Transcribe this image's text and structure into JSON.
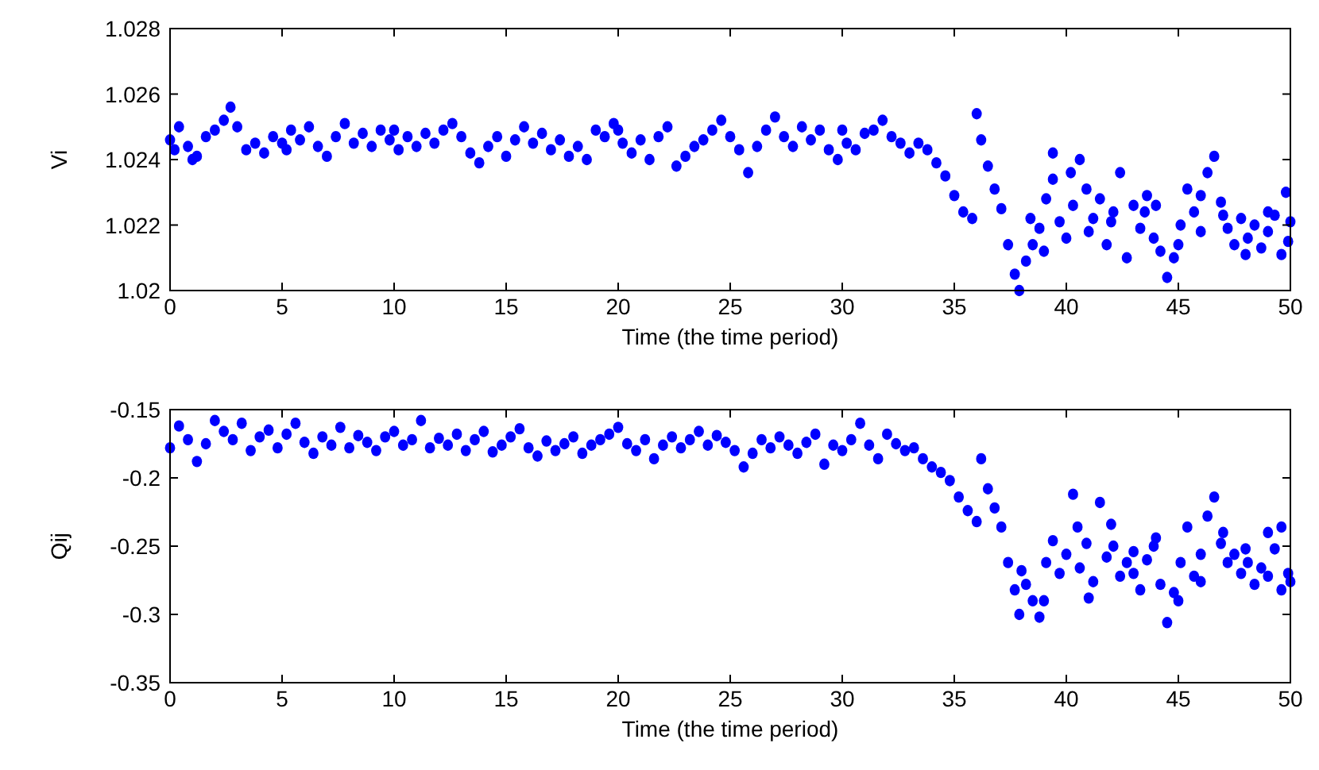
{
  "chart_data": [
    {
      "type": "scatter",
      "xlabel": "Time (the time period)",
      "ylabel": "Vi",
      "color": "#0000ff",
      "marker": "circle",
      "grid": false,
      "xlim": [
        0,
        50
      ],
      "xticks": [
        0,
        5,
        10,
        15,
        20,
        25,
        30,
        35,
        40,
        45,
        50
      ],
      "ylim": [
        1.02,
        1.028
      ],
      "yticks": [
        1.02,
        1.022,
        1.024,
        1.026,
        1.028
      ],
      "x": [
        0,
        0.4,
        0.8,
        1.2,
        1.6,
        2.0,
        2.4,
        2.7,
        3.0,
        3.4,
        3.8,
        4.2,
        4.6,
        5.0,
        5.4,
        5.8,
        6.2,
        6.6,
        7.0,
        7.4,
        7.8,
        8.2,
        8.6,
        9.0,
        9.4,
        9.8,
        10.2,
        10.6,
        11.0,
        11.4,
        11.8,
        12.2,
        12.6,
        13.0,
        13.4,
        13.8,
        14.2,
        14.6,
        15.0,
        15.4,
        15.8,
        16.2,
        16.6,
        17.0,
        17.4,
        17.8,
        18.2,
        18.6,
        19.0,
        19.4,
        19.8,
        20.2,
        20.6,
        21.0,
        21.4,
        21.8,
        22.2,
        22.6,
        23.0,
        23.4,
        23.8,
        24.2,
        24.6,
        25.0,
        25.4,
        25.8,
        26.2,
        26.6,
        27.0,
        27.4,
        27.8,
        28.2,
        28.6,
        29.0,
        29.4,
        29.8,
        30.2,
        30.6,
        31.0,
        31.4,
        31.8,
        32.2,
        32.6,
        33.0,
        33.4,
        33.8,
        34.2,
        34.6,
        35.0,
        35.4,
        35.8,
        36.0,
        36.2,
        36.5,
        36.8,
        37.1,
        37.4,
        37.7,
        37.9,
        38.2,
        38.5,
        38.8,
        39.1,
        39.4,
        39.4,
        39.7,
        40.0,
        40.3,
        40.6,
        40.9,
        41.2,
        41.5,
        41.8,
        42.1,
        42.4,
        42.7,
        43.0,
        43.3,
        43.6,
        43.9,
        44.2,
        44.5,
        44.8,
        45.1,
        45.4,
        45.7,
        46.0,
        46.3,
        46.6,
        46.9,
        47.2,
        47.5,
        47.8,
        48.1,
        48.4,
        48.7,
        49.0,
        49.3,
        49.6,
        49.9,
        50,
        38.4,
        39.0,
        40.2,
        41.0,
        42.0,
        43.5,
        44.0,
        45.0,
        46.0,
        47.0,
        48.0,
        49.0,
        49.8,
        0.2,
        1.0,
        5.2,
        10.0,
        20.0,
        30.0
      ],
      "values": [
        1.0246,
        1.025,
        1.0244,
        1.0241,
        1.0247,
        1.0249,
        1.0252,
        1.0256,
        1.025,
        1.0243,
        1.0245,
        1.0242,
        1.0247,
        1.0245,
        1.0249,
        1.0246,
        1.025,
        1.0244,
        1.0241,
        1.0247,
        1.0251,
        1.0245,
        1.0248,
        1.0244,
        1.0249,
        1.0246,
        1.0243,
        1.0247,
        1.0244,
        1.0248,
        1.0245,
        1.0249,
        1.0251,
        1.0247,
        1.0242,
        1.0239,
        1.0244,
        1.0247,
        1.0241,
        1.0246,
        1.025,
        1.0245,
        1.0248,
        1.0243,
        1.0246,
        1.0241,
        1.0244,
        1.024,
        1.0249,
        1.0247,
        1.0251,
        1.0245,
        1.0242,
        1.0246,
        1.024,
        1.0247,
        1.025,
        1.0238,
        1.0241,
        1.0244,
        1.0246,
        1.0249,
        1.0252,
        1.0247,
        1.0243,
        1.0236,
        1.0244,
        1.0249,
        1.0253,
        1.0247,
        1.0244,
        1.025,
        1.0246,
        1.0249,
        1.0243,
        1.024,
        1.0245,
        1.0243,
        1.0248,
        1.0249,
        1.0252,
        1.0247,
        1.0245,
        1.0242,
        1.0245,
        1.0243,
        1.0239,
        1.0235,
        1.0229,
        1.0224,
        1.0222,
        1.0254,
        1.0246,
        1.0238,
        1.0231,
        1.0225,
        1.0214,
        1.0205,
        1.02,
        1.0209,
        1.0214,
        1.0219,
        1.0228,
        1.0234,
        1.0242,
        1.0221,
        1.0216,
        1.0226,
        1.024,
        1.0231,
        1.0222,
        1.0228,
        1.0214,
        1.0224,
        1.0236,
        1.021,
        1.0226,
        1.0219,
        1.0229,
        1.0216,
        1.0212,
        1.0204,
        1.021,
        1.022,
        1.0231,
        1.0224,
        1.0229,
        1.0236,
        1.0241,
        1.0227,
        1.0219,
        1.0214,
        1.0222,
        1.0216,
        1.022,
        1.0213,
        1.0218,
        1.0223,
        1.0211,
        1.0215,
        1.0221,
        1.0222,
        1.0212,
        1.0236,
        1.0218,
        1.0221,
        1.0224,
        1.0226,
        1.0214,
        1.0218,
        1.0223,
        1.0211,
        1.0224,
        1.023,
        1.0243,
        1.024,
        1.0243,
        1.0249,
        1.0249,
        1.0249
      ]
    },
    {
      "type": "scatter",
      "xlabel": "Time (the time period)",
      "ylabel": "Qij",
      "color": "#0000ff",
      "marker": "circle",
      "grid": false,
      "xlim": [
        0,
        50
      ],
      "xticks": [
        0,
        5,
        10,
        15,
        20,
        25,
        30,
        35,
        40,
        45,
        50
      ],
      "ylim": [
        -0.35,
        -0.15
      ],
      "yticks": [
        -0.35,
        -0.3,
        -0.25,
        -0.2,
        -0.15
      ],
      "x": [
        0,
        0.4,
        0.8,
        1.2,
        1.6,
        2.0,
        2.4,
        2.8,
        3.2,
        3.6,
        4.0,
        4.4,
        4.8,
        5.2,
        5.6,
        6.0,
        6.4,
        6.8,
        7.2,
        7.6,
        8.0,
        8.4,
        8.8,
        9.2,
        9.6,
        10.0,
        10.4,
        10.8,
        11.2,
        11.6,
        12.0,
        12.4,
        12.8,
        13.2,
        13.6,
        14.0,
        14.4,
        14.8,
        15.2,
        15.6,
        16.0,
        16.4,
        16.8,
        17.2,
        17.6,
        18.0,
        18.4,
        18.8,
        19.2,
        19.6,
        20.0,
        20.4,
        20.8,
        21.2,
        21.6,
        22.0,
        22.4,
        22.8,
        23.2,
        23.6,
        24.0,
        24.4,
        24.8,
        25.2,
        25.6,
        26.0,
        26.4,
        26.8,
        27.2,
        27.6,
        28.0,
        28.4,
        28.8,
        29.2,
        29.6,
        30.0,
        30.4,
        30.8,
        31.2,
        31.6,
        32.0,
        32.4,
        32.8,
        33.2,
        33.6,
        34.0,
        34.4,
        34.8,
        35.2,
        35.6,
        36.0,
        36.2,
        36.5,
        36.8,
        37.1,
        37.4,
        37.7,
        37.9,
        38.2,
        38.5,
        38.8,
        39.1,
        39.4,
        39.7,
        40.0,
        40.3,
        40.6,
        40.9,
        41.2,
        41.5,
        41.8,
        42.1,
        42.4,
        42.7,
        43.0,
        43.3,
        43.6,
        43.9,
        44.2,
        44.5,
        44.8,
        45.1,
        45.4,
        45.7,
        46.0,
        46.3,
        46.6,
        46.9,
        47.2,
        47.5,
        47.8,
        48.1,
        48.4,
        48.7,
        49.0,
        49.3,
        49.6,
        49.9,
        50,
        38.0,
        39.0,
        40.5,
        41.0,
        42.0,
        43.0,
        44.0,
        45.0,
        46.0,
        47.0,
        48.0,
        49.0,
        49.6
      ],
      "values": [
        -0.178,
        -0.162,
        -0.172,
        -0.188,
        -0.175,
        -0.158,
        -0.166,
        -0.172,
        -0.16,
        -0.18,
        -0.17,
        -0.165,
        -0.178,
        -0.168,
        -0.16,
        -0.174,
        -0.182,
        -0.17,
        -0.176,
        -0.163,
        -0.178,
        -0.169,
        -0.174,
        -0.18,
        -0.17,
        -0.166,
        -0.176,
        -0.172,
        -0.158,
        -0.178,
        -0.171,
        -0.176,
        -0.168,
        -0.18,
        -0.172,
        -0.166,
        -0.181,
        -0.176,
        -0.17,
        -0.164,
        -0.178,
        -0.184,
        -0.173,
        -0.18,
        -0.175,
        -0.17,
        -0.182,
        -0.176,
        -0.172,
        -0.168,
        -0.163,
        -0.175,
        -0.18,
        -0.172,
        -0.186,
        -0.176,
        -0.17,
        -0.178,
        -0.172,
        -0.166,
        -0.176,
        -0.169,
        -0.174,
        -0.18,
        -0.192,
        -0.182,
        -0.172,
        -0.178,
        -0.17,
        -0.176,
        -0.182,
        -0.174,
        -0.168,
        -0.19,
        -0.176,
        -0.18,
        -0.172,
        -0.16,
        -0.176,
        -0.186,
        -0.168,
        -0.175,
        -0.18,
        -0.178,
        -0.186,
        -0.192,
        -0.196,
        -0.202,
        -0.214,
        -0.224,
        -0.232,
        -0.186,
        -0.208,
        -0.222,
        -0.236,
        -0.262,
        -0.282,
        -0.3,
        -0.278,
        -0.29,
        -0.302,
        -0.262,
        -0.246,
        -0.27,
        -0.256,
        -0.212,
        -0.266,
        -0.248,
        -0.276,
        -0.218,
        -0.258,
        -0.25,
        -0.272,
        -0.262,
        -0.254,
        -0.282,
        -0.26,
        -0.25,
        -0.278,
        -0.306,
        -0.284,
        -0.262,
        -0.236,
        -0.272,
        -0.256,
        -0.228,
        -0.214,
        -0.248,
        -0.262,
        -0.256,
        -0.27,
        -0.262,
        -0.278,
        -0.266,
        -0.272,
        -0.252,
        -0.282,
        -0.27,
        -0.276,
        -0.268,
        -0.29,
        -0.236,
        -0.288,
        -0.234,
        -0.27,
        -0.244,
        -0.29,
        -0.276,
        -0.24,
        -0.252,
        -0.24,
        -0.236
      ]
    }
  ]
}
